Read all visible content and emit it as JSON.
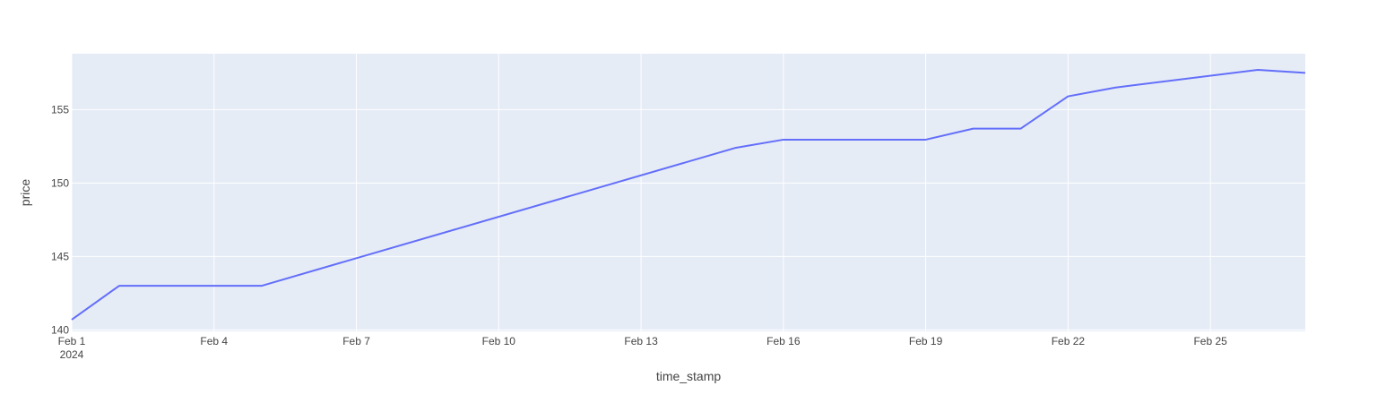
{
  "chart_data": {
    "type": "line",
    "xlabel": "time_stamp",
    "ylabel": "price",
    "x": [
      "2024-02-01",
      "2024-02-02",
      "2024-02-03",
      "2024-02-04",
      "2024-02-05",
      "2024-02-15",
      "2024-02-16",
      "2024-02-19",
      "2024-02-20",
      "2024-02-21",
      "2024-02-22",
      "2024-02-23",
      "2024-02-26",
      "2024-02-27"
    ],
    "series": [
      {
        "values": [
          140.7,
          143.0,
          143.0,
          143.0,
          143.0,
          152.4,
          152.95,
          152.95,
          153.7,
          153.7,
          155.9,
          156.5,
          157.7,
          157.5
        ]
      }
    ],
    "xlim": [
      "2024-02-01",
      "2024-02-27"
    ],
    "ylim": [
      139.9,
      158.8
    ],
    "y_ticks": [
      {
        "value": 140,
        "label": "140"
      },
      {
        "value": 145,
        "label": "145"
      },
      {
        "value": 150,
        "label": "150"
      },
      {
        "value": 155,
        "label": "155"
      }
    ],
    "x_ticks": [
      {
        "value": "2024-02-01",
        "label": "Feb 1",
        "sublabel": "2024"
      },
      {
        "value": "2024-02-04",
        "label": "Feb 4"
      },
      {
        "value": "2024-02-07",
        "label": "Feb 7"
      },
      {
        "value": "2024-02-10",
        "label": "Feb 10"
      },
      {
        "value": "2024-02-13",
        "label": "Feb 13"
      },
      {
        "value": "2024-02-16",
        "label": "Feb 16"
      },
      {
        "value": "2024-02-19",
        "label": "Feb 19"
      },
      {
        "value": "2024-02-22",
        "label": "Feb 22"
      },
      {
        "value": "2024-02-25",
        "label": "Feb 25"
      }
    ],
    "grid": true,
    "legend": "none",
    "colors": {
      "line": "#636efa",
      "plot_bg": "#e5ecf6",
      "grid": "#ffffff"
    }
  }
}
